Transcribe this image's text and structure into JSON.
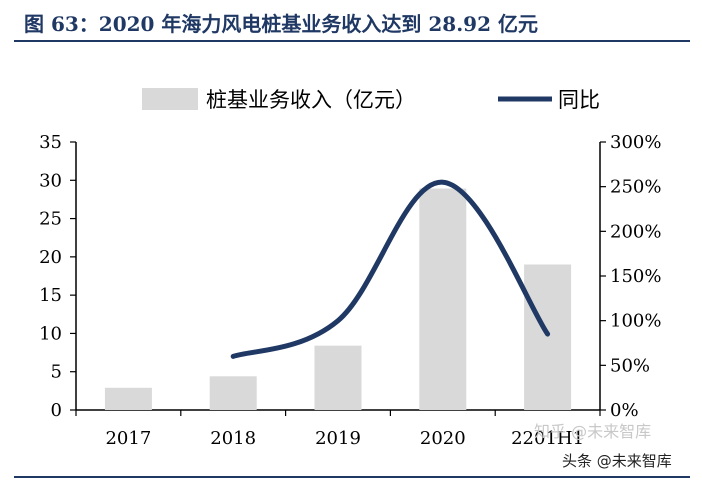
{
  "title": "图 63：2020 年海力风电桩基业务收入达到 28.92 亿元",
  "watermark": "知乎 @未来智库",
  "watermark2": "头条 @未来智库",
  "colors": {
    "bar": "#d9d9d9",
    "line": "#1f3864",
    "title": "#1f3864"
  },
  "chart_data": {
    "type": "bar",
    "categories": [
      "2017",
      "2018",
      "2019",
      "2020",
      "2201H1"
    ],
    "series": [
      {
        "name": "桩基业务收入（亿元）",
        "type": "bar",
        "axis": "left",
        "values": [
          2.9,
          4.4,
          8.4,
          28.92,
          19.0
        ]
      },
      {
        "name": "同比",
        "type": "line",
        "axis": "right",
        "values": [
          null,
          60,
          100,
          255,
          85
        ]
      }
    ],
    "ylim_left": [
      0,
      35
    ],
    "yticks_left": [
      "0",
      "5",
      "10",
      "15",
      "20",
      "25",
      "30",
      "35"
    ],
    "ylim_right": [
      0,
      300
    ],
    "yticks_right": [
      "0%",
      "50%",
      "100%",
      "150%",
      "200%",
      "250%",
      "300%"
    ],
    "legend": "top",
    "grid": false
  }
}
